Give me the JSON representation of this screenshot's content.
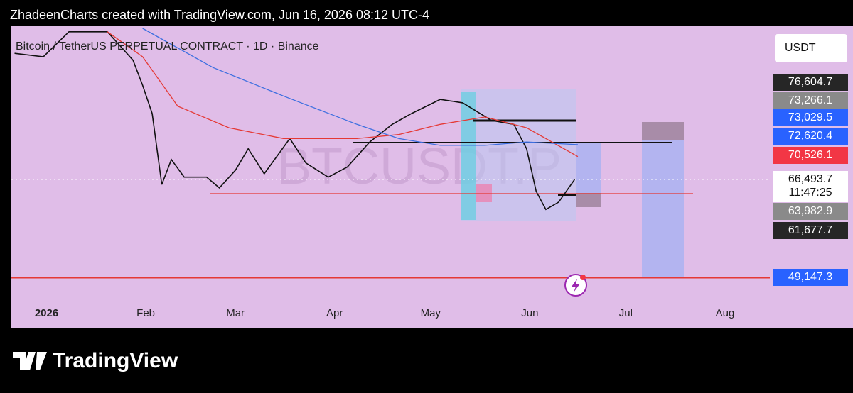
{
  "header": "ZhadeenCharts created with TradingView.com, Jun 16, 2026 08:12 UTC-4",
  "logo": "TradingView",
  "currency_button": "USDT",
  "chart_data": {
    "type": "line",
    "title": "Bitcoin / TetherUS PERPETUAL CONTRACT · 1D · Binance",
    "watermark": "BTCUSDT.P",
    "xlim": [
      -11,
      226
    ],
    "xticks": [
      {
        "value": 0,
        "label": "2026"
      },
      {
        "value": 31,
        "label": "Feb"
      },
      {
        "value": 59,
        "label": "Mar"
      },
      {
        "value": 90,
        "label": "Apr"
      },
      {
        "value": 120,
        "label": "May"
      },
      {
        "value": 151,
        "label": "Jun"
      },
      {
        "value": 181,
        "label": "Jul"
      },
      {
        "value": 212,
        "label": "Aug"
      }
    ],
    "ylim": [
      45000,
      96100
    ],
    "series": [
      {
        "color": "#111111",
        "x": [
          -10,
          -1,
          7,
          19,
          27,
          30,
          33,
          36,
          39,
          43,
          50,
          54,
          59,
          63,
          68,
          76,
          81,
          88,
          94,
          101,
          108,
          114,
          123,
          130,
          139,
          146,
          150,
          153,
          156,
          160,
          165
        ],
        "values": [
          88700,
          88100,
          92500,
          92500,
          87500,
          83100,
          78100,
          65600,
          70000,
          66900,
          66900,
          65000,
          68100,
          71900,
          67500,
          73700,
          69400,
          66900,
          68700,
          73100,
          76200,
          78100,
          80600,
          80000,
          76900,
          76200,
          71900,
          64400,
          61200,
          62500,
          66493.7
        ]
      },
      {
        "color": "#e53935",
        "x": [
          19,
          30,
          41,
          57,
          74,
          97,
          110,
          123,
          137,
          150,
          166
        ],
        "values": [
          92500,
          88100,
          79400,
          75600,
          73700,
          73700,
          74400,
          76200,
          77500,
          75600,
          70526.1
        ]
      },
      {
        "color": "#3d6fe0",
        "x": [
          30,
          52,
          74,
          97,
          110,
          123,
          137,
          150,
          166
        ],
        "values": [
          93100,
          86200,
          81200,
          76200,
          73700,
          72500,
          72500,
          73100,
          72620.4
        ]
      }
    ],
    "levels": [
      {
        "value": 66493.7,
        "color": "#ffffff",
        "dashed": true
      },
      {
        "value": 63982.9,
        "color": "#e53935",
        "dashed": false
      },
      {
        "value": 49147.3,
        "color": "#e53935",
        "dashed": false
      }
    ],
    "price_labels": [
      {
        "label": "76,604.7",
        "bg": "#262626",
        "fg": "#ffffff"
      },
      {
        "label": "73,266.1",
        "bg": "#8a8a8a",
        "fg": "#ffffff"
      },
      {
        "label": "73,029.5",
        "bg": "#2962ff",
        "fg": "#ffffff"
      },
      {
        "label": "72,620.4",
        "bg": "#2962ff",
        "fg": "#ffffff"
      },
      {
        "label": "70,526.1",
        "bg": "#f23645",
        "fg": "#ffffff"
      },
      {
        "label": "66,493.7",
        "bg": "#ffffff",
        "fg": "#111111"
      },
      {
        "label": "11:47:25",
        "bg": "#ffffff",
        "fg": "#111111"
      },
      {
        "label": "63,982.9",
        "bg": "#8a8a8a",
        "fg": "#ffffff"
      },
      {
        "label": "61,677.7",
        "bg": "#262626",
        "fg": "#ffffff"
      },
      {
        "label": "49,147.3",
        "bg": "#2962ff",
        "fg": "#ffffff"
      }
    ]
  }
}
